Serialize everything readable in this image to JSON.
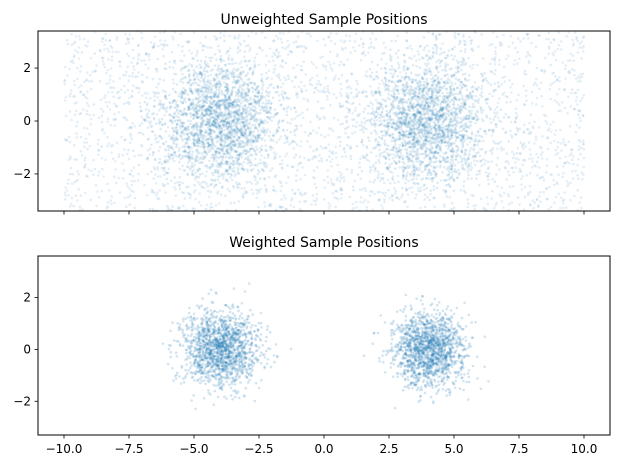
{
  "chart_data": [
    {
      "type": "scatter",
      "title": "Unweighted Sample Positions",
      "xlim": [
        -11,
        11
      ],
      "ylim": [
        -3.4,
        3.4
      ],
      "yticks": [
        2,
        0,
        -2
      ],
      "ytick_labels": [
        "2",
        "0",
        "−2"
      ],
      "xticks": [
        -10,
        -7.5,
        -5,
        -2.5,
        0,
        2.5,
        5,
        7.5,
        10
      ],
      "xtick_labels_visible": false,
      "series_color": "#1f77b4",
      "distribution": {
        "uniform_x_range": [
          -10,
          10
        ],
        "uniform_y_range": [
          -3.4,
          3.4
        ],
        "clusters": [
          {
            "center": [
              -4,
              0
            ],
            "std": [
              1.1,
              1.1
            ]
          },
          {
            "center": [
              4,
              0
            ],
            "std": [
              1.1,
              1.1
            ]
          }
        ]
      }
    },
    {
      "type": "scatter",
      "title": "Weighted Sample Positions",
      "xlim": [
        -11,
        11
      ],
      "ylim": [
        -3.3,
        3.6
      ],
      "yticks": [
        2,
        0,
        -2
      ],
      "ytick_labels": [
        "2",
        "0",
        "−2"
      ],
      "xticks": [
        -10,
        -7.5,
        -5,
        -2.5,
        0,
        2.5,
        5,
        7.5,
        10
      ],
      "xtick_labels": [
        "−10.0",
        "−7.5",
        "−5.0",
        "−2.5",
        "0.0",
        "2.5",
        "5.0",
        "7.5",
        "10.0"
      ],
      "xtick_labels_visible": true,
      "series_color": "#1f77b4",
      "distribution": {
        "clusters": [
          {
            "center": [
              -4,
              0
            ],
            "std": [
              0.75,
              0.72
            ]
          },
          {
            "center": [
              4,
              0
            ],
            "std": [
              0.7,
              0.7
            ]
          }
        ]
      }
    }
  ]
}
